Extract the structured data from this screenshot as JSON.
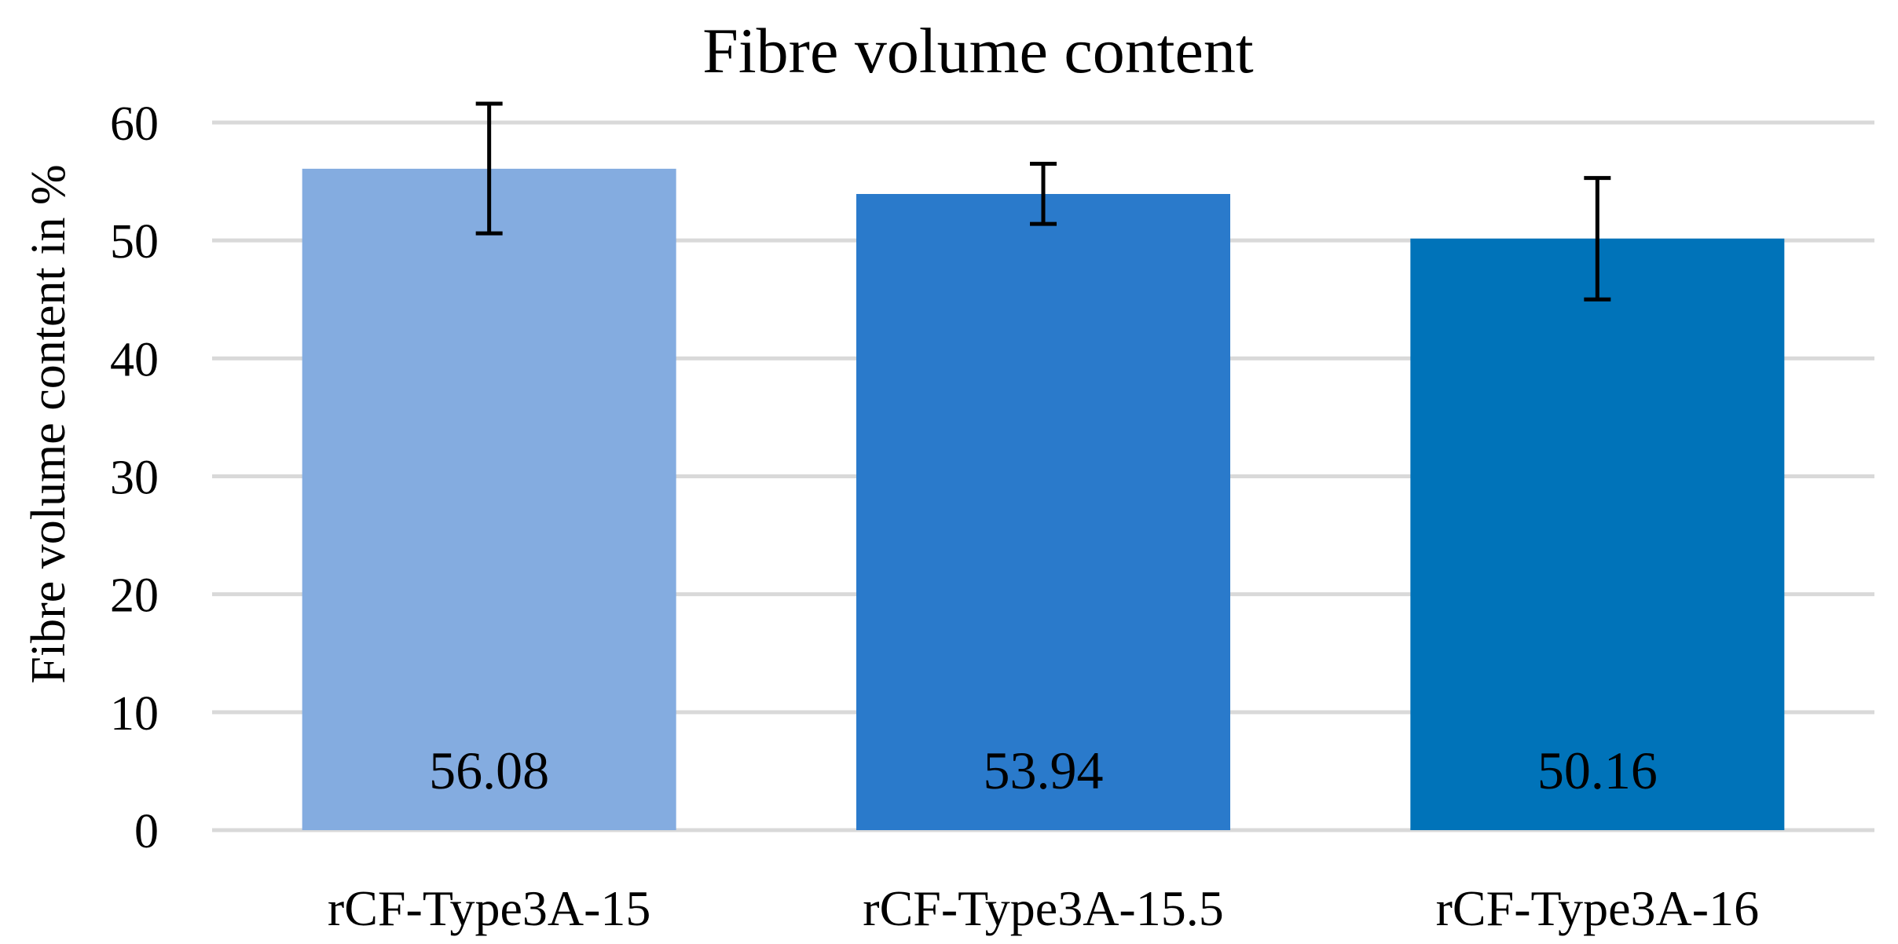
{
  "chart_data": {
    "type": "bar",
    "title": "Fibre volume content",
    "xlabel": "",
    "ylabel": "Fibre volume content in %",
    "categories": [
      "rCF-Type3A-15",
      "rCF-Type3A-15.5",
      "rCF-Type3A-16"
    ],
    "values": [
      56.08,
      53.94,
      50.16
    ],
    "data_labels": [
      "56.08",
      "53.94",
      "50.16"
    ],
    "error_bars": [
      {
        "low": 50.6,
        "high": 61.6
      },
      {
        "low": 51.4,
        "high": 56.5
      },
      {
        "low": 45.0,
        "high": 55.3
      }
    ],
    "ylim": [
      0,
      60
    ],
    "yticks": [
      0,
      10,
      20,
      30,
      40,
      50,
      60
    ],
    "ytick_labels": [
      "0",
      "10",
      "20",
      "30",
      "40",
      "50",
      "60"
    ],
    "bar_colors": [
      "#84ACE0",
      "#2A7ACB",
      "#0073B9"
    ],
    "gridline_color": "#D9D9D9",
    "grid": true,
    "legend": "none"
  }
}
